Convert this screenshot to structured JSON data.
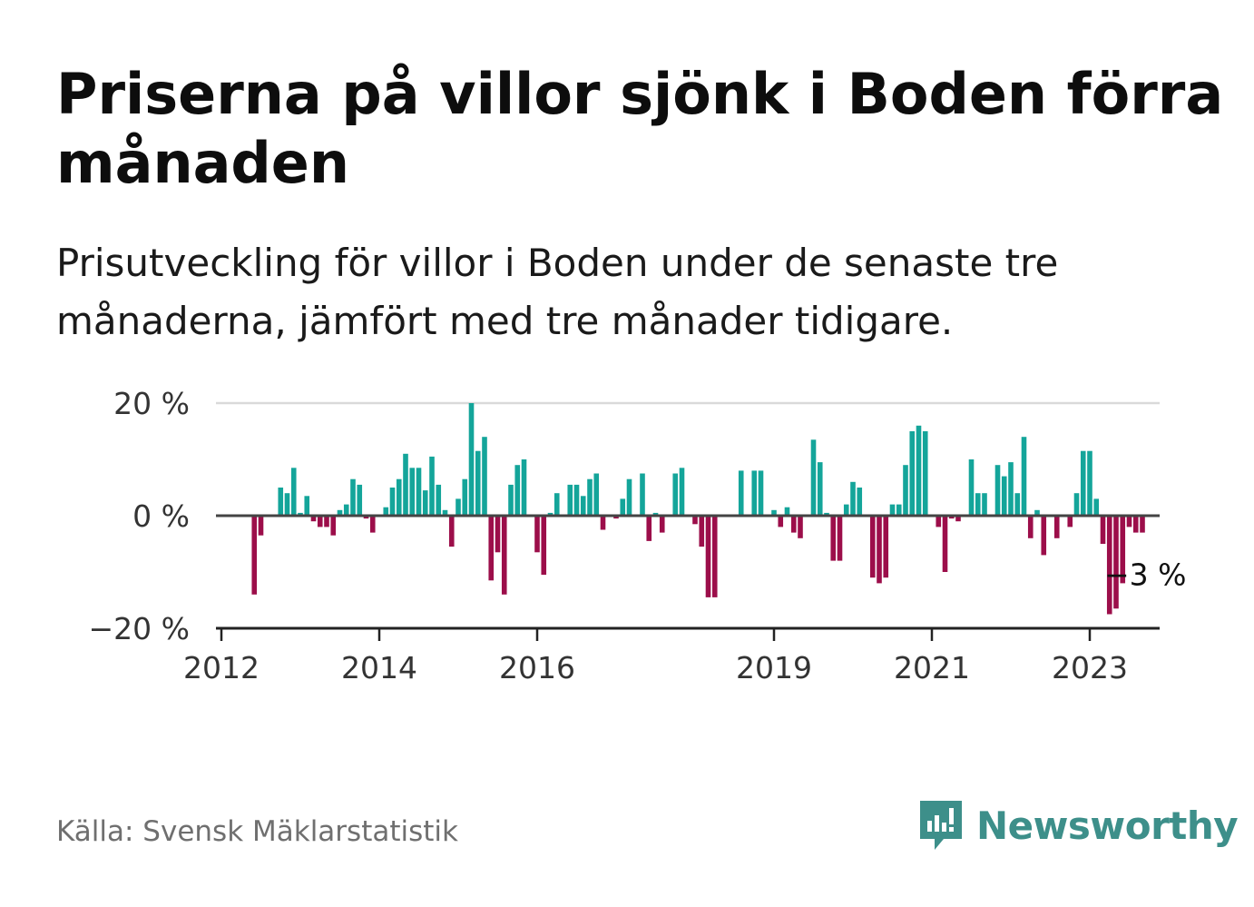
{
  "title": "Priserna på villor sjönk i Boden förra månaden",
  "subtitle": "Prisutveckling för villor i Boden under de senaste tre månaderna, jämfört med tre månader tidigare.",
  "source": "Källa: Svensk Mäklarstatistik",
  "brand": {
    "name": "Newsworthy",
    "icon": "newsworthy-logo-icon",
    "color": "#3d8f8a"
  },
  "colors": {
    "positive": "#14a59a",
    "negative": "#9c0e4a",
    "zero_line": "#444444",
    "grid": "#d9d9d9"
  },
  "chart_data": {
    "type": "bar",
    "start": "2012-01",
    "ylim": [
      -20,
      20
    ],
    "y_ticks": [
      {
        "value": 20,
        "label": "20 %"
      },
      {
        "value": 0,
        "label": "0 %"
      },
      {
        "value": -20,
        "label": "−20 %"
      }
    ],
    "x_ticks": [
      {
        "value": "2012-01",
        "label": "2012"
      },
      {
        "value": "2014-01",
        "label": "2014"
      },
      {
        "value": "2016-01",
        "label": "2016"
      },
      {
        "value": "2019-01",
        "label": "2019"
      },
      {
        "value": "2021-01",
        "label": "2021"
      },
      {
        "value": "2023-01",
        "label": "2023"
      }
    ],
    "last_value_label": "−3 %",
    "grid": true,
    "values": [
      null,
      null,
      null,
      null,
      null,
      -14,
      -3.5,
      0,
      0,
      5,
      4,
      8.5,
      0.5,
      3.5,
      -1,
      -2,
      -2,
      -3.5,
      1,
      2,
      6.5,
      5.5,
      -0.5,
      -3,
      0,
      1.5,
      5,
      6.5,
      11,
      8.5,
      8.5,
      4.5,
      10.5,
      5.5,
      1,
      -5.5,
      3,
      6.5,
      20,
      11.5,
      14,
      -11.5,
      -6.5,
      -14,
      5.5,
      9,
      10,
      0,
      -6.5,
      -10.5,
      0.5,
      4,
      0,
      5.5,
      5.5,
      3.5,
      6.5,
      7.5,
      -2.5,
      0,
      -0.5,
      3,
      6.5,
      0,
      7.5,
      -4.5,
      0.5,
      -3,
      0,
      7.5,
      8.5,
      0,
      -1.5,
      -5.5,
      -14.5,
      -14.5,
      0,
      0,
      0,
      8,
      0,
      8,
      8,
      0,
      1,
      -2,
      1.5,
      -3,
      -4,
      0,
      13.5,
      9.5,
      0.5,
      -8,
      -8,
      2,
      6,
      5,
      0,
      -11,
      -12,
      -11,
      2,
      2,
      9,
      15,
      16,
      15,
      0,
      -2,
      -10,
      -0.5,
      -1,
      0,
      10,
      4,
      4,
      0,
      9,
      7,
      9.5,
      4,
      14,
      -4,
      1,
      -7,
      0,
      -4,
      0,
      -2,
      4,
      11.5,
      11.5,
      3,
      -5,
      -17.5,
      -16.5,
      -12,
      -2,
      -3,
      -3
    ]
  }
}
